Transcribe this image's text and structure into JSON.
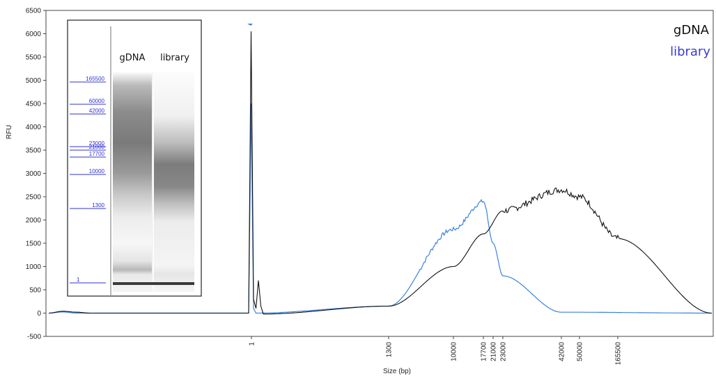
{
  "chart_data": {
    "type": "line",
    "xlabel": "Size (bp)",
    "ylabel": "RFU",
    "ylim": [
      -500,
      6500
    ],
    "y_ticks": [
      -500,
      0,
      500,
      1000,
      1500,
      2000,
      2500,
      3000,
      3500,
      4000,
      4500,
      5000,
      5500,
      6000,
      6500
    ],
    "x_ticks": [
      "1",
      "1300",
      "10000",
      "17700",
      "21000",
      "23000",
      "42000",
      "50000",
      "165500"
    ],
    "legend": {
      "position": "top-right",
      "entries": [
        {
          "label": "gDNA",
          "color": "#111111"
        },
        {
          "label": "library",
          "color": "#3b3bd6"
        }
      ]
    },
    "series": [
      {
        "name": "gDNA",
        "color": "#111111",
        "points": [
          [
            "start",
            0
          ],
          [
            "start",
            40
          ],
          [
            "start",
            20
          ],
          [
            "start",
            0
          ],
          [
            "1",
            0
          ],
          [
            "1",
            6050
          ],
          [
            "1",
            300
          ],
          [
            "1",
            100
          ],
          [
            "1",
            700
          ],
          [
            "1",
            150
          ],
          [
            "1",
            -20
          ],
          [
            "1300",
            150
          ],
          [
            "10000",
            1000
          ],
          [
            "17700",
            1700
          ],
          [
            "23000",
            2200
          ],
          [
            "42000",
            2650
          ],
          [
            "50000",
            2500
          ],
          [
            "165500",
            1600
          ],
          [
            "end",
            0
          ]
        ]
      },
      {
        "name": "library",
        "color": "#3b82e0",
        "points": [
          [
            "start",
            0
          ],
          [
            "start",
            25
          ],
          [
            "start",
            0
          ],
          [
            "1",
            0
          ],
          [
            "1",
            4500
          ],
          [
            "1",
            100
          ],
          [
            "1",
            0
          ],
          [
            "1300",
            150
          ],
          [
            "10000",
            1800
          ],
          [
            "17700",
            2400
          ],
          [
            "21000",
            1500
          ],
          [
            "23000",
            800
          ],
          [
            "42000",
            20
          ],
          [
            "end",
            0
          ]
        ]
      }
    ],
    "inset": {
      "lanes": [
        "gDNA",
        "library"
      ],
      "ladder_labels": [
        "165500",
        "60000",
        "42000",
        "23000",
        "21000",
        "17700",
        "10000",
        "1300",
        "1"
      ]
    }
  }
}
